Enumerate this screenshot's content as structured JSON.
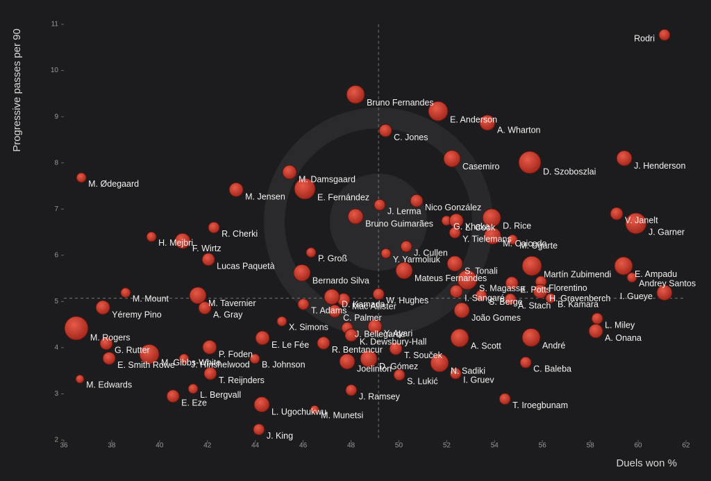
{
  "chart_data": {
    "type": "scatter",
    "x_label": "Duels won %",
    "y_label": "Progressive passes per 90",
    "xlim": [
      36,
      62
    ],
    "ylim": [
      2,
      11
    ],
    "xticks": [
      36,
      38,
      40,
      42,
      44,
      46,
      48,
      50,
      52,
      54,
      56,
      58,
      60,
      62
    ],
    "yticks": [
      2,
      3,
      4,
      5,
      6,
      7,
      8,
      9,
      10,
      11
    ],
    "x_median": 49.15,
    "y_median": 5.07,
    "color": "#c4392d",
    "labels": [
      "Rodri",
      "Bruno Fernandes",
      "E. Anderson",
      "A. Wharton",
      "C. Jones",
      "Casemiro",
      "D. Szoboszlai",
      "J. Henderson",
      "M. Ødegaard",
      "M. Damsgaard",
      "M. Jensen",
      "E. Fernández",
      "J. Lerma",
      "Nico González",
      "Bruno Guimarães",
      "G. Xhaka",
      "L. Cook",
      "D. Rice",
      "V. Janelt",
      "J. Garner",
      "R. Cherki",
      "H. Mejbri",
      "F. Wirtz",
      "M. Caicedo",
      "M. Ugarte",
      "Y. Tielemans",
      "J. Cullen",
      "Y. Yarmoliuk",
      "P. Groß",
      "Lucas Paquetà",
      "Bernardo Silva",
      "Mateus Fernandes",
      "S. Tonali",
      "Martín Zubimendi",
      "E. Ampadu",
      "Andrey Santos",
      "E. Potts",
      "Florentino",
      "H. Gravenberch",
      "A. Stach",
      "B. Kamara",
      "I. Gueye",
      "S. Magassa",
      "S. Berge",
      "I. Sangaré",
      "W. Hughes",
      "Mac Allister",
      "D. Kamada",
      "T. Adams",
      "C. Palmer",
      "João Gomes",
      "M. Mount",
      "M. Tavernier",
      "A. Gray",
      "Yéremy Pino",
      "L. Miley",
      "M. Rogers",
      "X. Simons",
      "J. Bellegarde",
      "Y. Ayari",
      "K. Dewsbury-Hall",
      "E. Le Fée",
      "P. Foden",
      "R. Bentancur",
      "A. Scott",
      "André",
      "A. Onana",
      "G. Rutter",
      "T. Souček",
      "M. Gibbs-White",
      "J. Hinshelwood",
      "B. Johnson",
      "Joelinton",
      "D. Gómez",
      "N. Sadiki",
      "C. Baleba",
      "E. Smith Rowe",
      "T. Reijnders",
      "S. Lukić",
      "I. Gruev",
      "M. Edwards",
      "L. Bergvall",
      "J. Ramsey",
      "E. Eze",
      "T. Iroegbunam",
      "L. Ugochukwu",
      "M. Munetsi",
      "J. King"
    ],
    "x": [
      61.1,
      48.19,
      51.64,
      53.7,
      49.44,
      52.22,
      55.47,
      59.42,
      36.73,
      45.43,
      43.2,
      46.07,
      49.2,
      50.74,
      48.19,
      51.99,
      52.4,
      53.88,
      59.1,
      59.91,
      42.27,
      39.66,
      40.96,
      53.91,
      54.75,
      52.34,
      50.31,
      49.46,
      46.33,
      42.04,
      45.95,
      50.22,
      52.34,
      55.56,
      59.39,
      59.74,
      54.72,
      55.94,
      55.91,
      54.66,
      56.34,
      61.1,
      52.86,
      53.44,
      52.4,
      49.15,
      47.69,
      47.2,
      46.01,
      47.32,
      52.63,
      38.58,
      41.6,
      41.89,
      37.63,
      58.29,
      36.52,
      45.11,
      47.84,
      49.0,
      48.01,
      44.3,
      42.09,
      46.85,
      52.54,
      55.53,
      58.23,
      37.77,
      49.87,
      39.57,
      41.02,
      43.98,
      47.84,
      48.74,
      51.7,
      55.3,
      37.89,
      42.12,
      50.02,
      52.37,
      36.67,
      41.4,
      48.01,
      40.56,
      54.43,
      44.27,
      46.48,
      44.15
    ],
    "y": [
      10.77,
      9.48,
      9.12,
      8.87,
      8.7,
      8.09,
      8.01,
      8.1,
      7.68,
      7.8,
      7.42,
      7.44,
      7.09,
      7.18,
      6.84,
      6.75,
      6.75,
      6.81,
      6.9,
      6.69,
      6.6,
      6.4,
      6.31,
      6.42,
      6.34,
      6.49,
      6.19,
      6.04,
      6.06,
      5.91,
      5.62,
      5.67,
      5.82,
      5.77,
      5.77,
      5.52,
      5.4,
      5.43,
      5.22,
      5.05,
      5.07,
      5.19,
      5.47,
      5.13,
      5.22,
      5.16,
      5.04,
      5.1,
      4.94,
      4.79,
      4.81,
      5.19,
      5.13,
      4.86,
      4.87,
      4.63,
      4.42,
      4.57,
      4.43,
      4.46,
      4.27,
      4.21,
      4.01,
      4.1,
      4.21,
      4.22,
      4.36,
      4.09,
      3.98,
      3.86,
      3.76,
      3.76,
      3.7,
      3.76,
      3.67,
      3.68,
      3.77,
      3.44,
      3.41,
      3.44,
      3.32,
      3.11,
      3.08,
      2.95,
      2.89,
      2.77,
      2.66,
      2.23
    ],
    "sizes": [
      8,
      13,
      14,
      11,
      9,
      12,
      16,
      11,
      7,
      10,
      10,
      15,
      8,
      9,
      11,
      7,
      10,
      13,
      9,
      15,
      8,
      7,
      11,
      12,
      7,
      8,
      8,
      7,
      7,
      9,
      12,
      12,
      11,
      14,
      13,
      7,
      9,
      8,
      10,
      8,
      7,
      11,
      14,
      8,
      9,
      8,
      9,
      11,
      8,
      9,
      11,
      7,
      12,
      9,
      10,
      8,
      17,
      7,
      8,
      10,
      9,
      10,
      10,
      9,
      13,
      13,
      10,
      9,
      9,
      14,
      7,
      7,
      11,
      12,
      13,
      8,
      9,
      9,
      8,
      8,
      6,
      7,
      8,
      9,
      8,
      11,
      6,
      8
    ]
  }
}
